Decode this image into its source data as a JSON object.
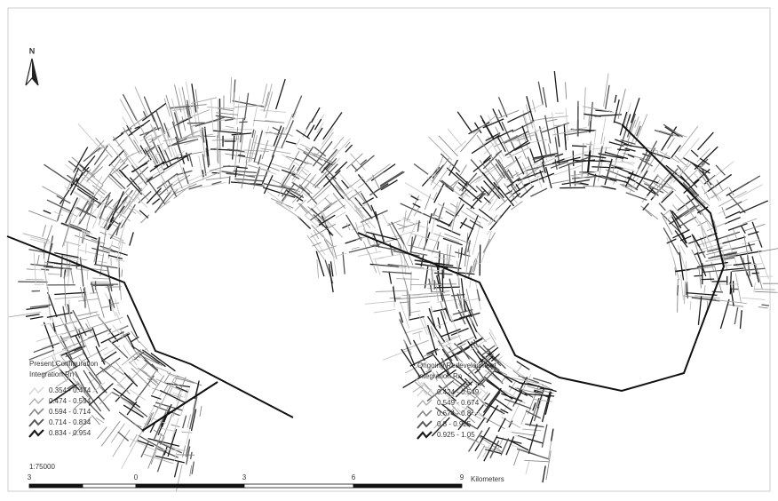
{
  "north": "N",
  "left_map": {
    "legend": {
      "title": "Present Configuration",
      "subtitle": "Integration Rn",
      "classes": [
        "0.354 - 0.474",
        "0.474 - 0.594",
        "0.594 - 0.714",
        "0.714 - 0.834",
        "0.834 - 0.954"
      ]
    }
  },
  "right_map": {
    "legend": {
      "title": "Ongoing Redevelopment",
      "subtitle": "Integration Rn",
      "classes": [
        "0.424 - 0.549",
        "0.549 - 0.674",
        "0.674 - 0.8",
        "0.8 - 0.925",
        "0.925 - 1.05"
      ]
    }
  },
  "scale_bar": {
    "ratio": "1:75000",
    "labels": [
      "3",
      "0",
      "3",
      "6",
      "9"
    ],
    "unit": "Kilometers"
  }
}
